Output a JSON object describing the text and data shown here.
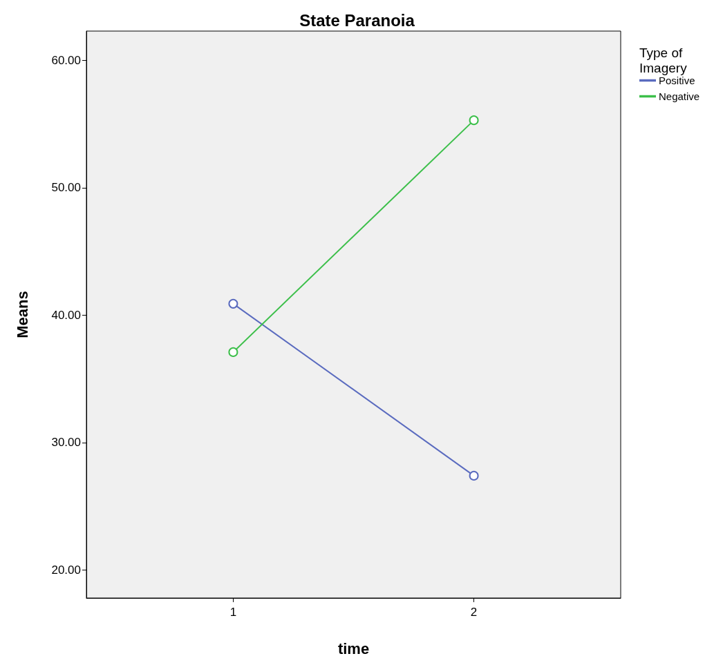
{
  "chart_data": {
    "type": "line",
    "title": "State Paranoia",
    "xlabel": "time",
    "ylabel": "Means",
    "legend_title": "Type of Imagery",
    "x": [
      1,
      2
    ],
    "xlim": [
      0.39,
      2.61
    ],
    "xticks": [
      1,
      2
    ],
    "ylim": [
      17.8,
      62.3
    ],
    "yticks": [
      {
        "value": 20,
        "label": "20.00"
      },
      {
        "value": 30,
        "label": "30.00"
      },
      {
        "value": 40,
        "label": "40.00"
      },
      {
        "value": 50,
        "label": "50.00"
      },
      {
        "value": 60,
        "label": "60.00"
      }
    ],
    "series": [
      {
        "name": "Positive",
        "color": "#5a6bbf",
        "values": [
          40.9,
          27.4
        ]
      },
      {
        "name": "Negative",
        "color": "#3cbf4a",
        "values": [
          37.1,
          55.3
        ]
      }
    ],
    "marker": "circle",
    "line_style": "solid",
    "grid": false,
    "legend": "top right"
  }
}
